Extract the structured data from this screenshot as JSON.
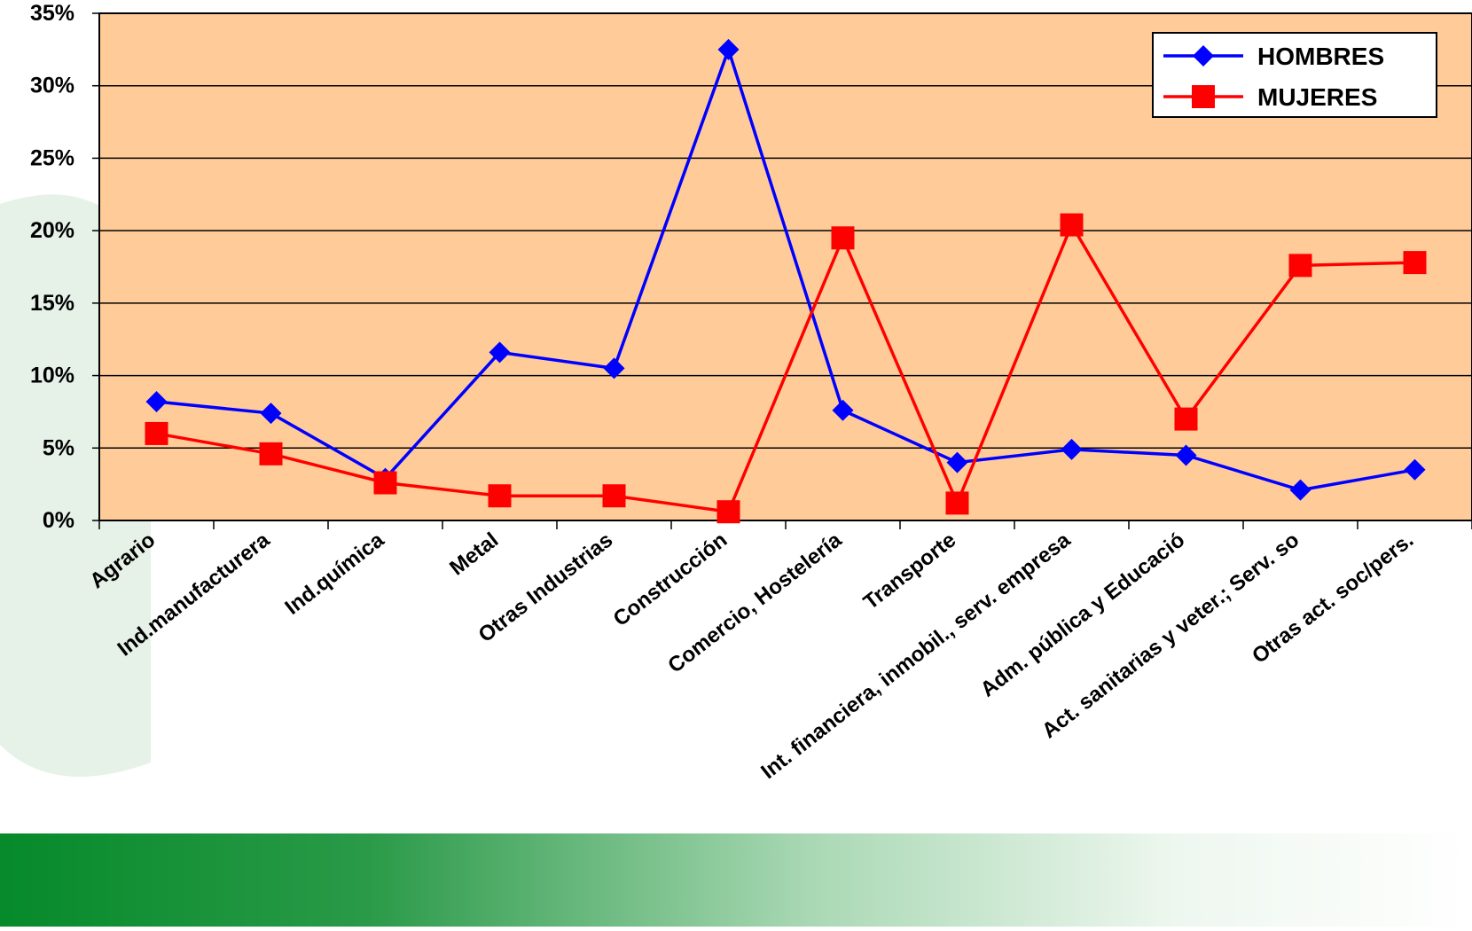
{
  "chart_data": {
    "type": "line",
    "categories": [
      "Agrario",
      "Ind.manufacturera",
      "Ind.química",
      "Metal",
      "Otras Industrias",
      "Construcción",
      "Comercio, Hostelería",
      "Transporte",
      "Int. financiera, inmobil., serv. empresa",
      "Adm. pública y Educació",
      "Act. sanitarias y veter.; Serv. so",
      "Otras act. soc/pers."
    ],
    "series": [
      {
        "name": "HOMBRES",
        "color": "#0000ff",
        "marker": "diamond",
        "values": [
          8.2,
          7.4,
          2.9,
          11.6,
          10.5,
          32.5,
          7.6,
          4.0,
          4.9,
          4.5,
          2.1,
          3.5
        ]
      },
      {
        "name": "MUJERES",
        "color": "#ff0000",
        "marker": "square",
        "values": [
          6.0,
          4.6,
          2.6,
          1.7,
          1.7,
          0.6,
          19.5,
          1.2,
          20.4,
          7.0,
          17.6,
          17.8
        ]
      }
    ],
    "ylim": [
      0,
      35
    ],
    "yticks": [
      {
        "value": 0,
        "label": "0%"
      },
      {
        "value": 5,
        "label": "5%"
      },
      {
        "value": 10,
        "label": "10%"
      },
      {
        "value": 15,
        "label": "15%"
      },
      {
        "value": 20,
        "label": "20%"
      },
      {
        "value": 25,
        "label": "25%"
      },
      {
        "value": 30,
        "label": "30%"
      },
      {
        "value": 35,
        "label": "35%"
      }
    ],
    "grid": true,
    "legend": "top-right",
    "plot_background": "#ffcc99"
  }
}
